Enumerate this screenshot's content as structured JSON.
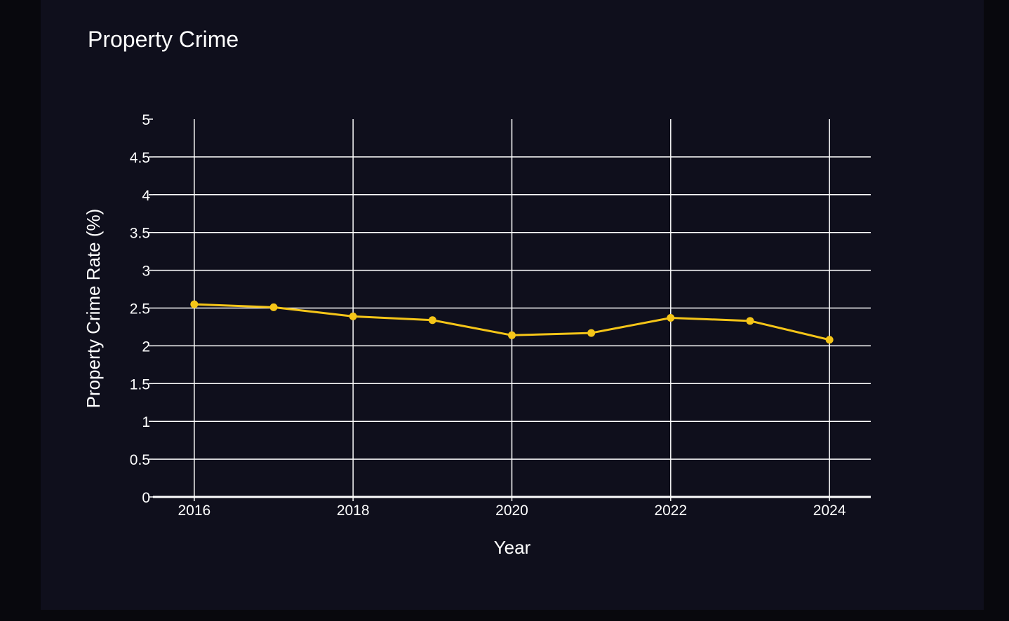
{
  "chart_data": {
    "type": "line",
    "title": "Property Crime",
    "xlabel": "Year",
    "ylabel": "Property Crime Rate (%)",
    "x": [
      2016,
      2017,
      2018,
      2019,
      2020,
      2021,
      2022,
      2023,
      2024
    ],
    "series": [
      {
        "values": [
          2.55,
          2.51,
          2.39,
          2.34,
          2.14,
          2.17,
          2.37,
          2.33,
          2.08
        ],
        "color": "#f5c518"
      }
    ],
    "xlim": [
      2015.48,
      2024.52
    ],
    "ylim": [
      0,
      5
    ],
    "xticks": [
      2016,
      2018,
      2020,
      2022,
      2024
    ],
    "xtick_labels": [
      "2016",
      "2018",
      "2020",
      "2022",
      "2024"
    ],
    "yticks": [
      0,
      0.5,
      1,
      1.5,
      2,
      2.5,
      3,
      3.5,
      4,
      4.5,
      5
    ],
    "ytick_labels": [
      "0",
      "0.5",
      "1",
      "1.5",
      "2",
      "2.5",
      "3",
      "3.5",
      "4",
      "4.5",
      "5"
    ],
    "grid": true,
    "legend": "none"
  },
  "colors": {
    "background": "#0f0f1c",
    "page": "#08080d",
    "grid": "#ffffff",
    "text": "#ffffff",
    "line": "#f5c518"
  }
}
